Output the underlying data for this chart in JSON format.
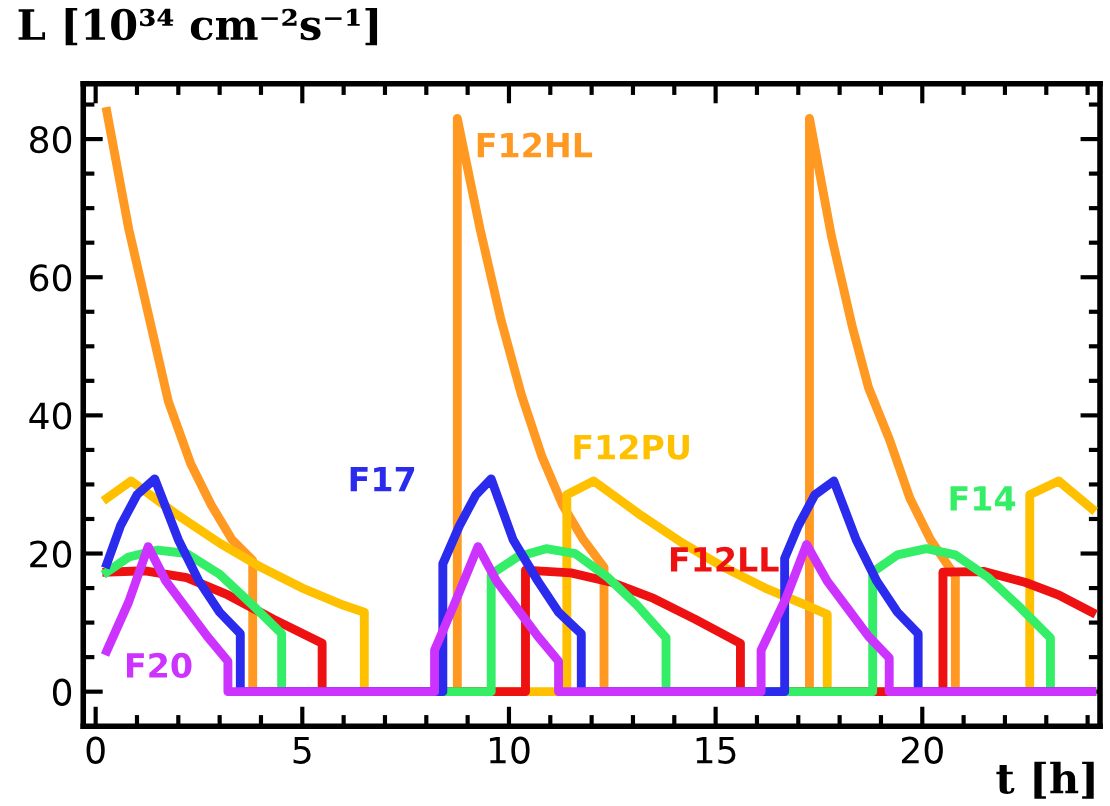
{
  "chart_data": {
    "type": "line",
    "ylabel": "L [10³⁴ cm⁻²s⁻¹]",
    "xlabel": "t [h]",
    "xlim": [
      -0.3,
      24.3
    ],
    "ylim": [
      -5,
      88
    ],
    "xticks": [
      0,
      5,
      10,
      15,
      20
    ],
    "yticks": [
      0,
      20,
      40,
      60,
      80
    ],
    "grid": false,
    "line_style": "solid",
    "marker": "none",
    "series": [
      {
        "name": "F12HL",
        "color": "#ff9922",
        "x": [
          0.27,
          0.8,
          1.3,
          1.76,
          2.3,
          2.8,
          3.3,
          3.8,
          3.8,
          8.75,
          8.75,
          9.3,
          9.8,
          10.3,
          10.8,
          11.3,
          11.8,
          12.3,
          12.3,
          17.27,
          17.27,
          17.8,
          18.3,
          18.7,
          19.2,
          19.7,
          20.2,
          20.8,
          20.8,
          24.1
        ],
        "values": [
          84,
          67,
          54,
          42,
          33,
          27,
          22,
          19,
          0,
          0,
          83,
          67,
          54,
          43,
          34,
          27,
          22,
          18,
          0,
          0,
          83,
          66,
          53,
          44,
          36.6,
          28,
          22,
          16.7,
          0,
          0
        ]
      },
      {
        "name": "F12PU",
        "color": "#ffc000",
        "x": [
          0.27,
          0.86,
          2,
          3,
          4,
          5,
          6,
          6.5,
          6.5,
          11.4,
          11.4,
          12.05,
          13.2,
          14.2,
          15.2,
          16.2,
          17.2,
          17.7,
          17.7,
          22.6,
          22.6,
          23.3,
          24.1
        ],
        "values": [
          28,
          30.5,
          25.5,
          21.5,
          18,
          15,
          12.5,
          11.5,
          0,
          0,
          28.5,
          30.5,
          25.5,
          21.5,
          18,
          15,
          12.5,
          11.2,
          0,
          0,
          28.5,
          30.5,
          26.5
        ]
      },
      {
        "name": "F12LL",
        "color": "#ee1111",
        "x": [
          0.27,
          1.2,
          2.2,
          3.2,
          4.3,
          5.48,
          5.48,
          10.4,
          10.4,
          11.5,
          12.5,
          13.5,
          14.5,
          15.6,
          15.6,
          20.5,
          20.5,
          21.5,
          22.5,
          23.3,
          24.1
        ],
        "values": [
          17.3,
          17.5,
          16.5,
          14,
          10.5,
          7,
          0,
          0,
          17.6,
          17.2,
          15.8,
          13.5,
          10.5,
          7,
          0,
          0,
          17.3,
          17.4,
          15.8,
          14,
          11.5
        ]
      },
      {
        "name": "F14",
        "color": "#33ee66",
        "x": [
          0.27,
          0.8,
          1.5,
          2.2,
          3.0,
          3.8,
          4.5,
          4.5,
          9.57,
          9.57,
          10.2,
          10.9,
          11.6,
          12.4,
          13.1,
          13.8,
          13.8,
          18.8,
          18.8,
          19.4,
          20.1,
          20.8,
          21.6,
          22.4,
          23.1,
          23.1,
          24.1
        ],
        "values": [
          17.3,
          19.5,
          20.5,
          20,
          17,
          12.5,
          8.4,
          0,
          0,
          17,
          19.5,
          20.7,
          20,
          16.5,
          12.5,
          7.8,
          0,
          0,
          17.3,
          19.8,
          20.7,
          19.8,
          16.5,
          12,
          7.8,
          0,
          0
        ]
      },
      {
        "name": "F17",
        "color": "#2b2bee",
        "x": [
          0.27,
          0.6,
          1.0,
          1.43,
          2.0,
          2.5,
          3.0,
          3.5,
          3.5,
          8.4,
          8.4,
          8.8,
          9.2,
          9.57,
          10.1,
          10.7,
          11.2,
          11.75,
          11.75,
          16.67,
          16.67,
          17.0,
          17.4,
          17.86,
          18.4,
          18.9,
          19.4,
          19.9,
          19.9,
          24.1
        ],
        "values": [
          18.5,
          24,
          28.5,
          30.8,
          22,
          16,
          11.5,
          8.4,
          0,
          0,
          18.5,
          24,
          28.5,
          30.8,
          22,
          16,
          11.5,
          8.4,
          0,
          0,
          19.3,
          24,
          28.5,
          30.5,
          22,
          16,
          11.5,
          8.4,
          0,
          0
        ]
      },
      {
        "name": "F20",
        "color": "#cc33ff",
        "x": [
          0.27,
          0.8,
          1.27,
          1.7,
          2.2,
          2.7,
          3.2,
          3.2,
          8.2,
          8.2,
          8.7,
          9.25,
          9.7,
          10.2,
          10.7,
          11.2,
          11.2,
          16.1,
          16.1,
          16.7,
          17.2,
          17.7,
          18.2,
          18.7,
          19.2,
          19.2,
          24.1
        ],
        "values": [
          5.9,
          13,
          21,
          16,
          12,
          8,
          4.4,
          0,
          0,
          6,
          13,
          21,
          16,
          12,
          8,
          4.4,
          0,
          0,
          6,
          13.5,
          21.3,
          16,
          12,
          8,
          4.9,
          0,
          0
        ]
      }
    ]
  }
}
